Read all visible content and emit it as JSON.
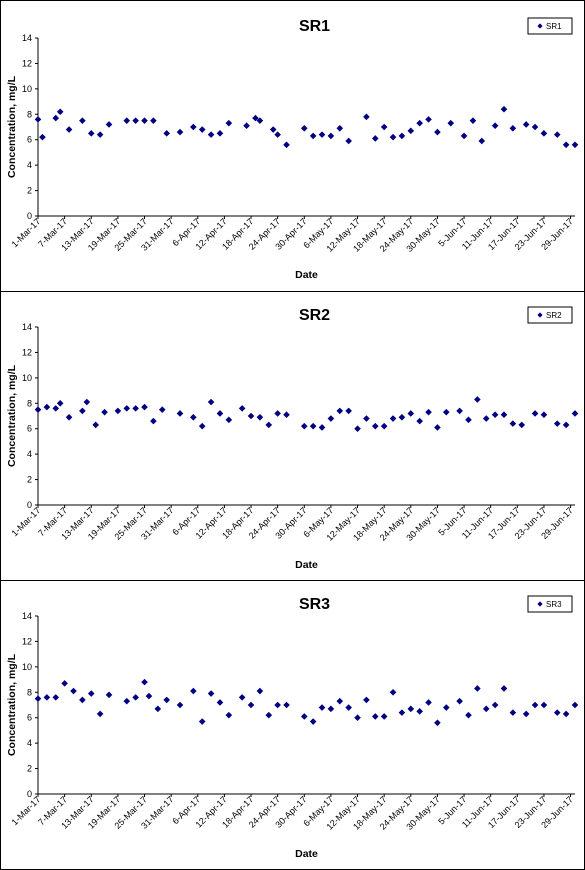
{
  "chart_data": [
    {
      "type": "scatter",
      "title": "SR1",
      "xlabel": "Date",
      "ylabel": "Concentration, mg/L",
      "ylim": [
        0,
        14
      ],
      "yticks": [
        "0",
        "2",
        "4",
        "6",
        "8",
        "10",
        "12",
        "14"
      ],
      "xticks": [
        "1-Mar-17",
        "7-Mar-17",
        "13-Mar-17",
        "19-Mar-17",
        "25-Mar-17",
        "31-Mar-17",
        "6-Apr-17",
        "12-Apr-17",
        "18-Apr-17",
        "24-Apr-17",
        "30-Apr-17",
        "6-May-17",
        "12-May-17",
        "18-May-17",
        "24-May-17",
        "30-May-17",
        "5-Jun-17",
        "11-Jun-17",
        "17-Jun-17",
        "23-Jun-17",
        "29-Jun-17"
      ],
      "grid": false,
      "legend": "top-right",
      "marker_color": "#000080",
      "series": [
        {
          "name": "SR1",
          "x": [
            "1-Mar-17",
            "2-Mar-17",
            "5-Mar-17",
            "6-Mar-17",
            "8-Mar-17",
            "11-Mar-17",
            "13-Mar-17",
            "15-Mar-17",
            "17-Mar-17",
            "21-Mar-17",
            "23-Mar-17",
            "25-Mar-17",
            "27-Mar-17",
            "30-Mar-17",
            "2-Apr-17",
            "5-Apr-17",
            "7-Apr-17",
            "9-Apr-17",
            "11-Apr-17",
            "13-Apr-17",
            "17-Apr-17",
            "19-Apr-17",
            "20-Apr-17",
            "23-Apr-17",
            "24-Apr-17",
            "26-Apr-17",
            "30-Apr-17",
            "2-May-17",
            "4-May-17",
            "6-May-17",
            "8-May-17",
            "10-May-17",
            "14-May-17",
            "16-May-17",
            "18-May-17",
            "20-May-17",
            "22-May-17",
            "24-May-17",
            "26-May-17",
            "28-May-17",
            "30-May-17",
            "2-Jun-17",
            "5-Jun-17",
            "7-Jun-17",
            "9-Jun-17",
            "12-Jun-17",
            "14-Jun-17",
            "16-Jun-17",
            "19-Jun-17",
            "21-Jun-17",
            "23-Jun-17",
            "26-Jun-17",
            "28-Jun-17",
            "30-Jun-17"
          ],
          "y": [
            7.6,
            6.2,
            7.7,
            8.2,
            6.8,
            7.5,
            6.5,
            6.4,
            7.2,
            7.5,
            7.5,
            7.5,
            7.5,
            6.5,
            6.6,
            7.0,
            6.8,
            6.4,
            6.5,
            7.3,
            7.1,
            7.7,
            7.5,
            6.8,
            6.4,
            5.6,
            6.9,
            6.3,
            6.4,
            6.3,
            6.9,
            5.9,
            7.8,
            6.1,
            7.0,
            6.2,
            6.3,
            6.7,
            7.3,
            7.6,
            6.6,
            7.3,
            6.3,
            7.5,
            5.9,
            7.1,
            8.4,
            6.9,
            7.2,
            7.0,
            6.5,
            6.4,
            5.6,
            5.6
          ]
        }
      ]
    },
    {
      "type": "scatter",
      "title": "SR2",
      "xlabel": "Date",
      "ylabel": "Concentration, mg/L",
      "ylim": [
        0,
        14
      ],
      "yticks": [
        "0",
        "2",
        "4",
        "6",
        "8",
        "10",
        "12",
        "14"
      ],
      "xticks": [
        "1-Mar-17",
        "7-Mar-17",
        "13-Mar-17",
        "19-Mar-17",
        "25-Mar-17",
        "31-Mar-17",
        "6-Apr-17",
        "12-Apr-17",
        "18-Apr-17",
        "24-Apr-17",
        "30-Apr-17",
        "6-May-17",
        "12-May-17",
        "18-May-17",
        "24-May-17",
        "30-May-17",
        "5-Jun-17",
        "11-Jun-17",
        "17-Jun-17",
        "23-Jun-17",
        "29-Jun-17"
      ],
      "grid": false,
      "legend": "top-right",
      "marker_color": "#000080",
      "series": [
        {
          "name": "SR2",
          "x": [
            "1-Mar-17",
            "3-Mar-17",
            "5-Mar-17",
            "6-Mar-17",
            "8-Mar-17",
            "11-Mar-17",
            "12-Mar-17",
            "14-Mar-17",
            "16-Mar-17",
            "19-Mar-17",
            "21-Mar-17",
            "23-Mar-17",
            "25-Mar-17",
            "27-Mar-17",
            "29-Mar-17",
            "2-Apr-17",
            "5-Apr-17",
            "7-Apr-17",
            "9-Apr-17",
            "11-Apr-17",
            "13-Apr-17",
            "16-Apr-17",
            "18-Apr-17",
            "20-Apr-17",
            "22-Apr-17",
            "24-Apr-17",
            "26-Apr-17",
            "30-Apr-17",
            "2-May-17",
            "4-May-17",
            "6-May-17",
            "8-May-17",
            "10-May-17",
            "12-May-17",
            "14-May-17",
            "16-May-17",
            "18-May-17",
            "20-May-17",
            "22-May-17",
            "24-May-17",
            "26-May-17",
            "28-May-17",
            "30-May-17",
            "1-Jun-17",
            "4-Jun-17",
            "6-Jun-17",
            "8-Jun-17",
            "10-Jun-17",
            "12-Jun-17",
            "14-Jun-17",
            "16-Jun-17",
            "18-Jun-17",
            "21-Jun-17",
            "23-Jun-17",
            "26-Jun-17",
            "28-Jun-17",
            "30-Jun-17"
          ],
          "y": [
            7.5,
            7.7,
            7.6,
            8.0,
            6.9,
            7.4,
            8.1,
            6.3,
            7.3,
            7.4,
            7.6,
            7.6,
            7.7,
            6.6,
            7.5,
            7.2,
            6.9,
            6.2,
            8.1,
            7.2,
            6.7,
            7.6,
            7.0,
            6.9,
            6.3,
            7.2,
            7.1,
            6.2,
            6.2,
            6.1,
            6.8,
            7.4,
            7.4,
            6.0,
            6.8,
            6.2,
            6.2,
            6.8,
            6.9,
            7.2,
            6.6,
            7.3,
            6.1,
            7.3,
            7.4,
            6.7,
            8.3,
            6.8,
            7.1,
            7.1,
            6.4,
            6.3,
            7.2,
            7.1,
            6.4,
            6.3,
            7.2
          ]
        }
      ]
    },
    {
      "type": "scatter",
      "title": "SR3",
      "xlabel": "Date",
      "ylabel": "Concentration, mg/L",
      "ylim": [
        0,
        14
      ],
      "yticks": [
        "0",
        "2",
        "4",
        "6",
        "8",
        "10",
        "12",
        "14"
      ],
      "xticks": [
        "1-Mar-17",
        "7-Mar-17",
        "13-Mar-17",
        "19-Mar-17",
        "25-Mar-17",
        "31-Mar-17",
        "6-Apr-17",
        "12-Apr-17",
        "18-Apr-17",
        "24-Apr-17",
        "30-Apr-17",
        "6-May-17",
        "12-May-17",
        "18-May-17",
        "24-May-17",
        "30-May-17",
        "5-Jun-17",
        "11-Jun-17",
        "17-Jun-17",
        "23-Jun-17",
        "29-Jun-17"
      ],
      "grid": false,
      "legend": "top-right",
      "marker_color": "#000080",
      "series": [
        {
          "name": "SR3",
          "x": [
            "1-Mar-17",
            "3-Mar-17",
            "5-Mar-17",
            "7-Mar-17",
            "9-Mar-17",
            "11-Mar-17",
            "13-Mar-17",
            "15-Mar-17",
            "17-Mar-17",
            "21-Mar-17",
            "23-Mar-17",
            "25-Mar-17",
            "26-Mar-17",
            "28-Mar-17",
            "30-Mar-17",
            "2-Apr-17",
            "5-Apr-17",
            "7-Apr-17",
            "9-Apr-17",
            "11-Apr-17",
            "13-Apr-17",
            "16-Apr-17",
            "18-Apr-17",
            "20-Apr-17",
            "22-Apr-17",
            "24-Apr-17",
            "26-Apr-17",
            "30-Apr-17",
            "2-May-17",
            "4-May-17",
            "6-May-17",
            "8-May-17",
            "10-May-17",
            "12-May-17",
            "14-May-17",
            "16-May-17",
            "18-May-17",
            "20-May-17",
            "22-May-17",
            "24-May-17",
            "26-May-17",
            "28-May-17",
            "30-May-17",
            "1-Jun-17",
            "4-Jun-17",
            "6-Jun-17",
            "8-Jun-17",
            "10-Jun-17",
            "12-Jun-17",
            "14-Jun-17",
            "16-Jun-17",
            "19-Jun-17",
            "21-Jun-17",
            "23-Jun-17",
            "26-Jun-17",
            "28-Jun-17",
            "30-Jun-17"
          ],
          "y": [
            7.5,
            7.6,
            7.6,
            8.7,
            8.1,
            7.4,
            7.9,
            6.3,
            7.8,
            7.3,
            7.6,
            8.8,
            7.7,
            6.7,
            7.4,
            7.0,
            8.1,
            5.7,
            7.9,
            7.2,
            6.2,
            7.6,
            7.0,
            8.1,
            6.2,
            7.0,
            7.0,
            6.1,
            5.7,
            6.8,
            6.7,
            7.3,
            6.8,
            6.0,
            7.4,
            6.1,
            6.1,
            8.0,
            6.4,
            6.7,
            6.5,
            7.2,
            5.6,
            6.8,
            7.3,
            6.2,
            8.3,
            6.7,
            7.0,
            8.3,
            6.4,
            6.3,
            7.0,
            7.0,
            6.4,
            6.3,
            7.0
          ]
        }
      ]
    }
  ]
}
